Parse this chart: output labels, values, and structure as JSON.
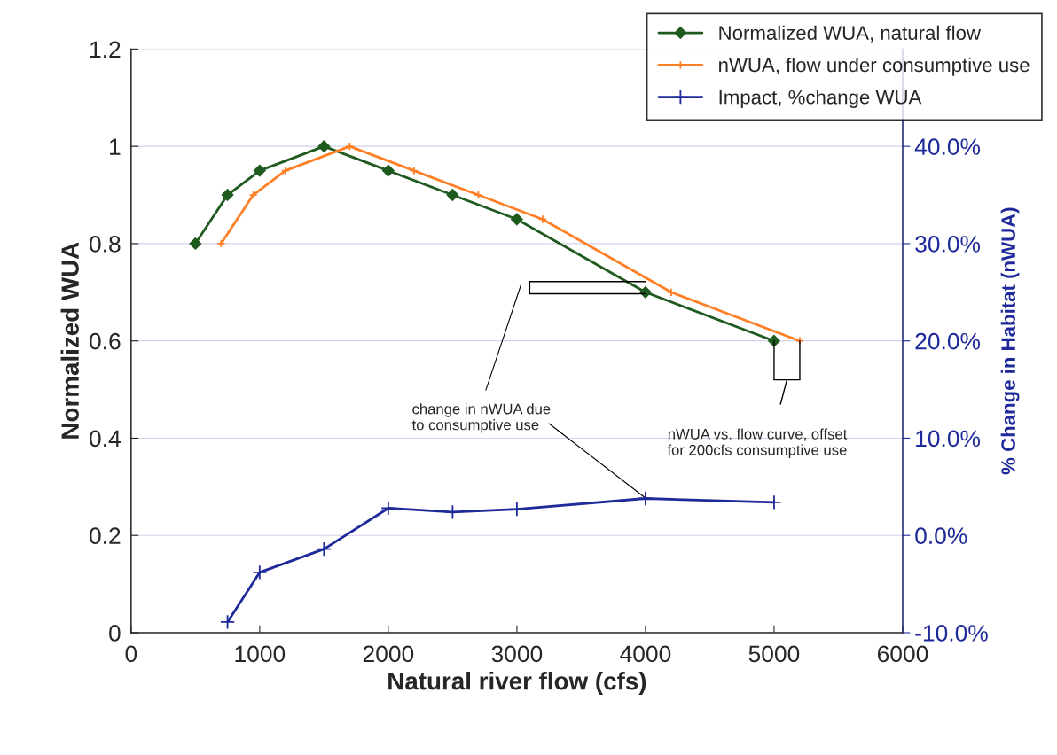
{
  "chart_data": {
    "type": "line",
    "xlabel": "Natural river flow (cfs)",
    "ylabel": "Normalized WUA",
    "y2label": "% Change in Habitat (nWUA)",
    "xlim": [
      0,
      6000
    ],
    "xticks": [
      0,
      1000,
      2000,
      3000,
      4000,
      5000,
      6000
    ],
    "ylim": [
      0,
      1.2
    ],
    "yticks": [
      0,
      0.2,
      0.4,
      0.6,
      0.8,
      1,
      1.2
    ],
    "y2lim": [
      -10,
      50
    ],
    "y2ticks": [
      {
        "value": -10,
        "label": "-10.0%"
      },
      {
        "value": 0,
        "label": "0.0%"
      },
      {
        "value": 10,
        "label": "10.0%"
      },
      {
        "value": 20,
        "label": "20.0%"
      },
      {
        "value": 30,
        "label": "30.0%"
      },
      {
        "value": 40,
        "label": "40.0%"
      }
    ],
    "grid": "y",
    "legend": "top right",
    "series": [
      {
        "name": "Normalized WUA, natural flow",
        "color": "#1f5a1f",
        "marker": "diamond",
        "x": [
          500,
          750,
          1000,
          1500,
          2000,
          2500,
          3000,
          4000,
          5000
        ],
        "values": [
          0.8,
          0.9,
          0.95,
          1.0,
          0.95,
          0.9,
          0.85,
          0.7,
          0.6
        ]
      },
      {
        "name": "nWUA, flow under consumptive use",
        "color": "#ff7f27",
        "marker": "cross",
        "x": [
          700,
          950,
          1200,
          1700,
          2200,
          2700,
          3200,
          4200,
          5200
        ],
        "values": [
          0.8,
          0.9,
          0.95,
          1.0,
          0.95,
          0.9,
          0.85,
          0.7,
          0.6
        ]
      },
      {
        "name": "Impact, %change WUA",
        "color": "#1f2a9a",
        "marker": "cross",
        "axis": "y2",
        "x": [
          750,
          1000,
          1500,
          2000,
          2500,
          3000,
          4000,
          5000
        ],
        "values": [
          -8.9,
          -3.8,
          -1.4,
          2.8,
          2.4,
          2.7,
          3.8,
          3.4
        ]
      }
    ],
    "annotations": [
      {
        "text": "change in nWUA due\nto consumptive use",
        "x": 4000,
        "y": 0.277
      },
      "nWUA vs. flow curve, offset\nfor 200cfs consumptive use"
    ]
  }
}
